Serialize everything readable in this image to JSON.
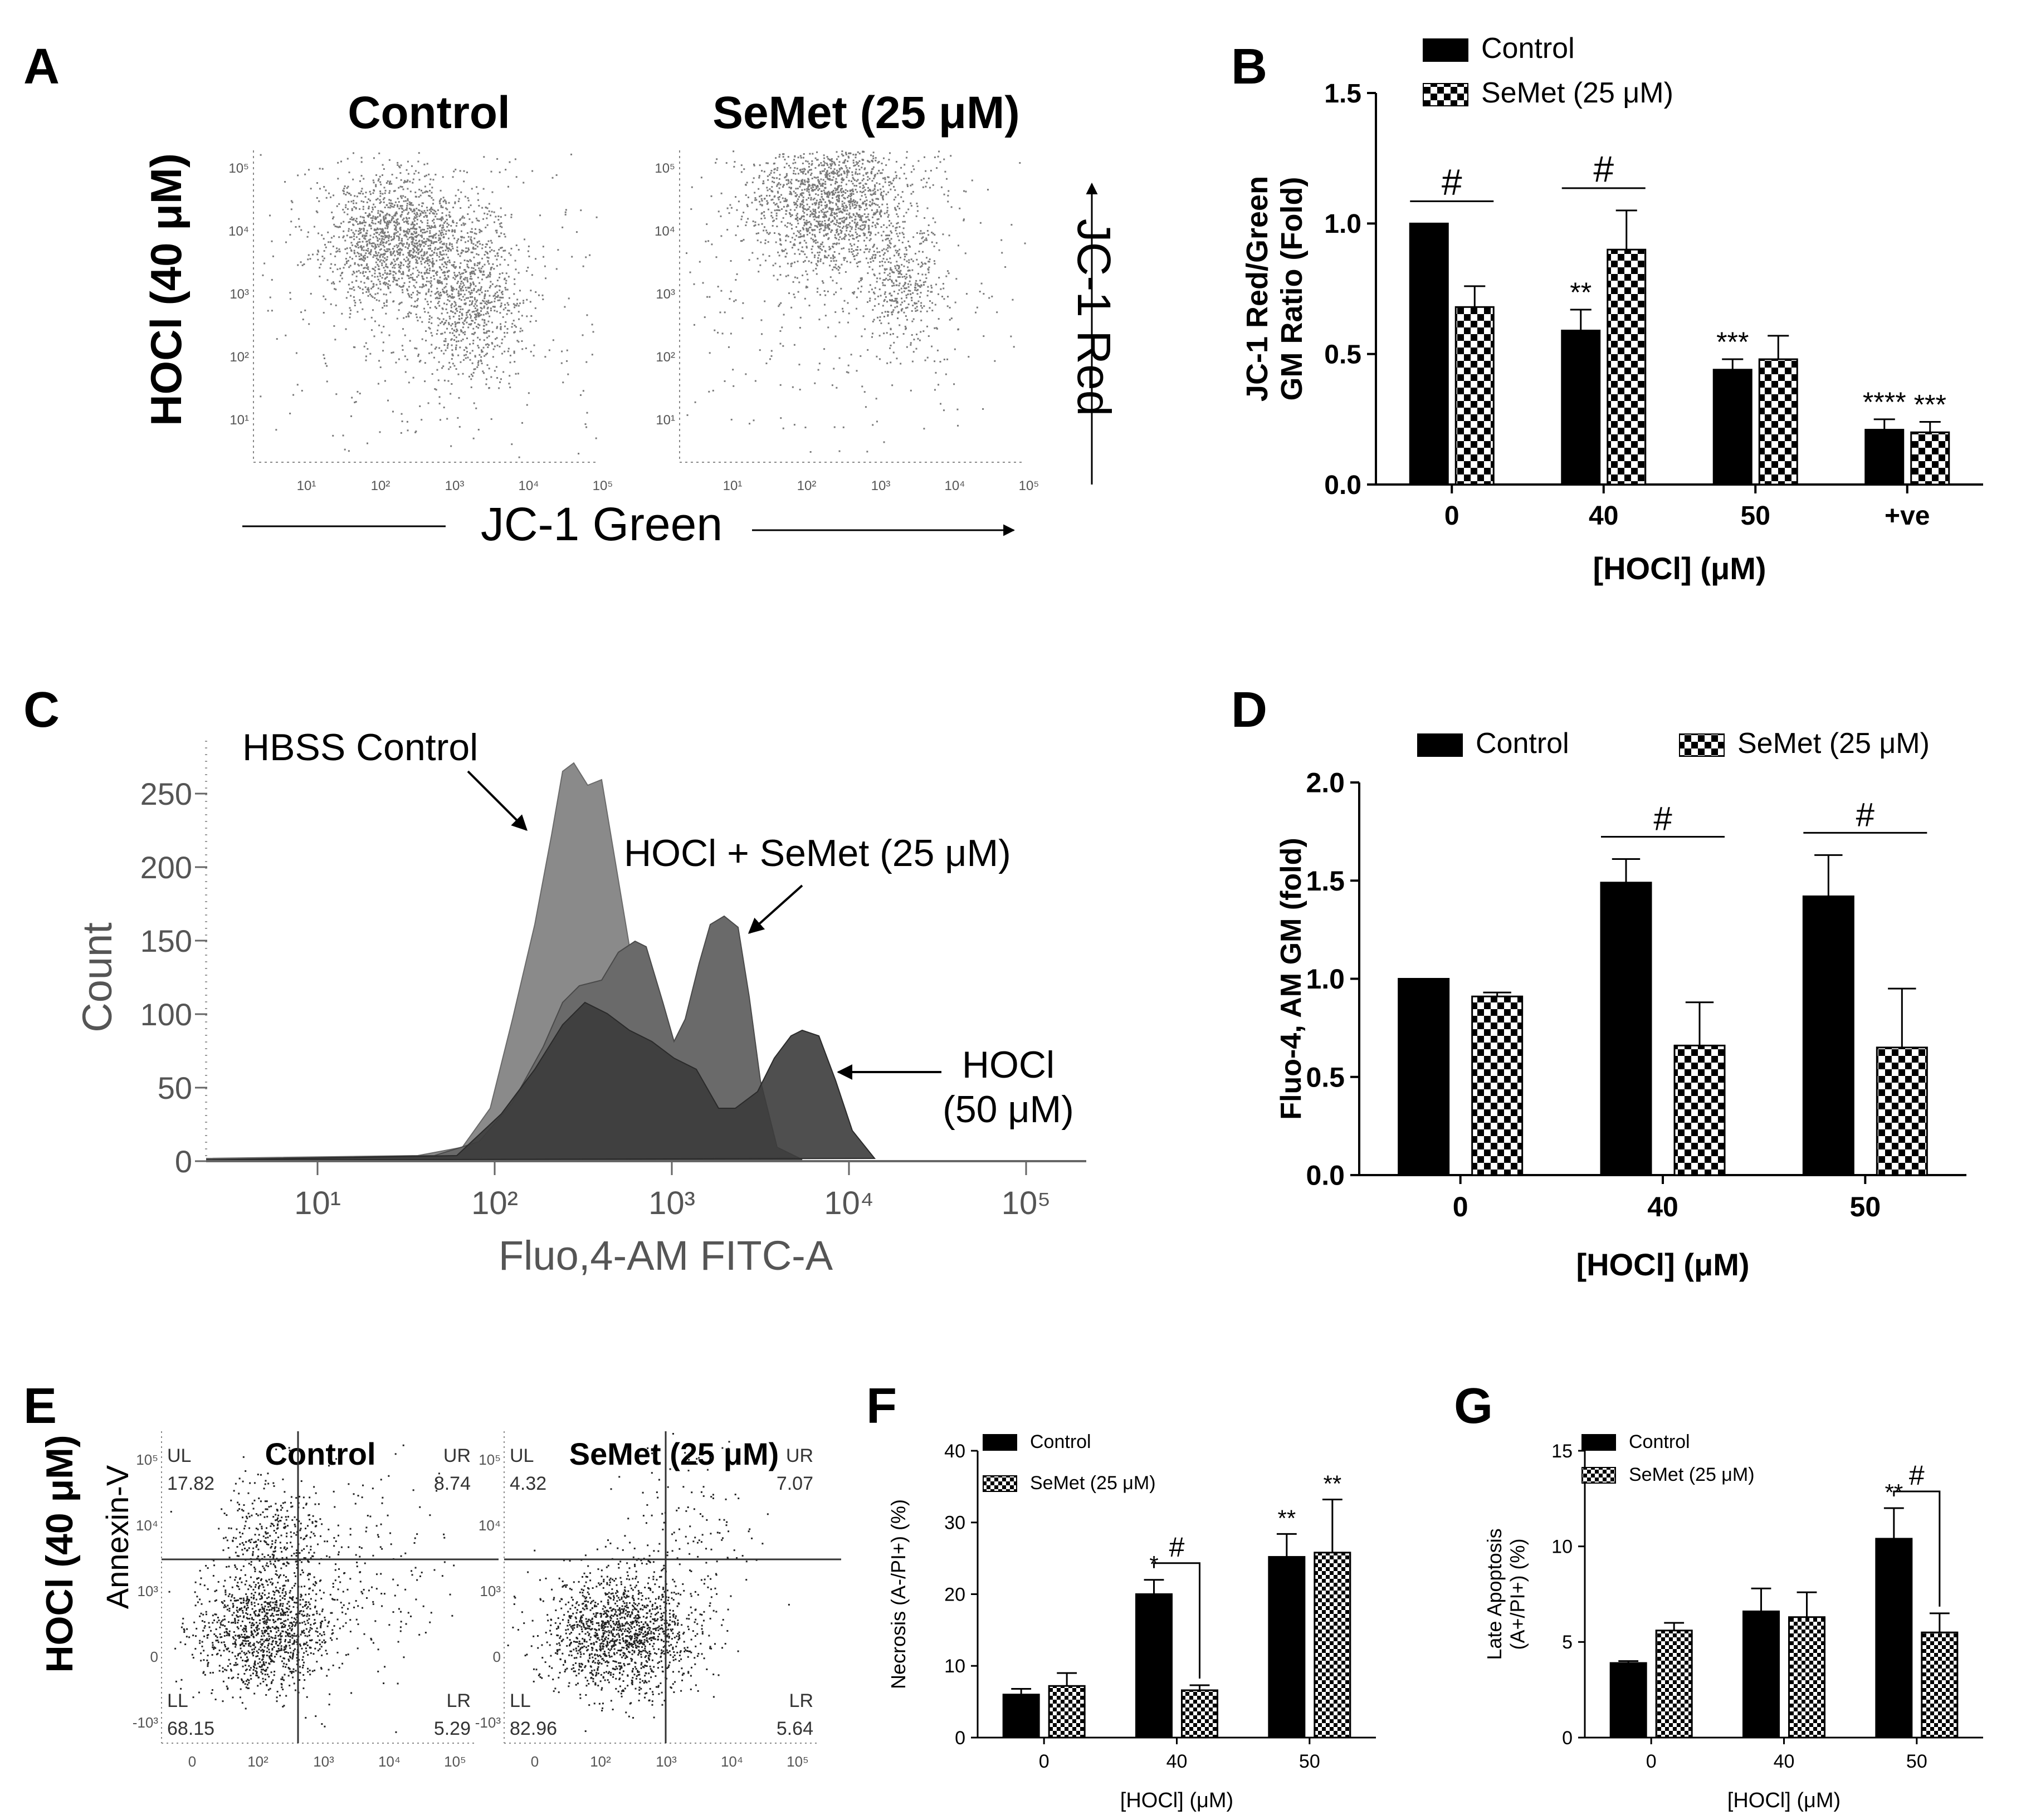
{
  "colors": {
    "ink": "#000000",
    "flow_dots": "#7a7a7a",
    "flow_dots_dark": "#222222",
    "histogram_light": "#8a8a8a",
    "histogram_mid": "#5e5e5e",
    "histogram_dark": "#3c3c3c",
    "axis_gray": "#666666"
  },
  "panel_letters": {
    "A": "A",
    "B": "B",
    "C": "C",
    "D": "D",
    "E": "E",
    "F": "F",
    "G": "G"
  },
  "panel_A": {
    "row_label": "HOCl (40 μM)",
    "plots": [
      {
        "title": "Control"
      },
      {
        "title": "SeMet (25 μM)"
      }
    ],
    "x_ticks": [
      "10¹",
      "10²",
      "10³",
      "10⁴",
      "10⁵"
    ],
    "y_ticks": [
      "10⁵",
      "10⁴",
      "10³",
      "10²",
      "10¹"
    ],
    "x_axis_label": "JC-1 Green",
    "y_axis_label": "JC-1 Red"
  },
  "panel_C": {
    "ylabel": "Count",
    "xlabel": "Fluo,4-AM FITC-A",
    "y_ticks": [
      "250",
      "200",
      "150",
      "100",
      "50",
      "0"
    ],
    "x_ticks": [
      "10¹",
      "10²",
      "10³",
      "10⁴",
      "10⁵"
    ],
    "annotations": {
      "hbss": "HBSS Control",
      "semet": "HOCl + SeMet (25 μM)",
      "hocl_line1": "HOCl",
      "hocl_line2": "(50 μM)"
    }
  },
  "panel_E": {
    "row_label": "HOCl (40 μM)",
    "ylabel": "Annexin-V",
    "plots": [
      {
        "title": "Control",
        "UL": "17.82",
        "UR": "8.74",
        "LL": "68.15",
        "LR": "5.29"
      },
      {
        "title": "SeMet  (25 μM)",
        "UL": "4.32",
        "UR": "7.07",
        "LL": "82.96",
        "LR": "5.64"
      }
    ],
    "quadrant_labels": {
      "UL": "UL",
      "UR": "UR",
      "LL": "LL",
      "LR": "LR"
    },
    "x_ticks": [
      "0",
      "10²",
      "10³",
      "10⁴",
      "10⁵"
    ],
    "y_ticks": [
      "10⁵",
      "10⁴",
      "10³",
      "0",
      "-10³"
    ]
  },
  "chart_data": [
    {
      "panel": "B",
      "type": "bar",
      "categories": [
        "0",
        "40",
        "50",
        "+ve"
      ],
      "series": [
        {
          "name": "Control",
          "values": [
            1.0,
            0.59,
            0.44,
            0.21
          ],
          "errors": [
            0,
            0.08,
            0.04,
            0.04
          ]
        },
        {
          "name": "SeMet (25 μM)",
          "values": [
            0.68,
            0.9,
            0.48,
            0.2
          ],
          "errors": [
            0.08,
            0.15,
            0.09,
            0.04
          ]
        }
      ],
      "xlabel": "[HOCl] (μM)",
      "ylabel_lines": [
        "JC-1 Red/Green",
        "GM Ratio (Fold)"
      ],
      "ylim": [
        0,
        1.5
      ],
      "yticks": [
        "0.0",
        "0.5",
        "1.0",
        "1.5"
      ],
      "significance": [
        {
          "series": 0,
          "category": 1,
          "label": "**"
        },
        {
          "series": 0,
          "category": 2,
          "label": "***"
        },
        {
          "series": 0,
          "category": 3,
          "label": "****"
        },
        {
          "series": 1,
          "category": 3,
          "label": "***"
        }
      ],
      "brackets": [
        {
          "category": 0,
          "label": "#"
        },
        {
          "category": 1,
          "label": "#"
        }
      ],
      "legend": "top"
    },
    {
      "panel": "D",
      "type": "bar",
      "categories": [
        "0",
        "40",
        "50"
      ],
      "series": [
        {
          "name": "Control",
          "values": [
            1.0,
            1.49,
            1.42
          ],
          "errors": [
            0,
            0.12,
            0.21
          ]
        },
        {
          "name": "SeMet (25 μM)",
          "values": [
            0.91,
            0.66,
            0.65
          ],
          "errors": [
            0.02,
            0.22,
            0.3
          ]
        }
      ],
      "xlabel": "[HOCl] (μM)",
      "ylabel": "Fluo-4, AM GM (fold)",
      "ylim": [
        0,
        2.0
      ],
      "yticks": [
        "0.0",
        "0.5",
        "1.0",
        "1.5",
        "2.0"
      ],
      "brackets": [
        {
          "category": 1,
          "label": "#"
        },
        {
          "category": 2,
          "label": "#"
        }
      ],
      "legend": "top"
    },
    {
      "panel": "F",
      "type": "bar",
      "categories": [
        "0",
        "40",
        "50"
      ],
      "series": [
        {
          "name": "Control",
          "values": [
            6.0,
            20.0,
            25.2
          ],
          "errors": [
            0.8,
            2.0,
            3.2
          ]
        },
        {
          "name": "SeMet (25 μM)",
          "values": [
            7.2,
            6.6,
            25.8
          ],
          "errors": [
            1.8,
            0.7,
            7.4
          ]
        }
      ],
      "xlabel": "[HOCl] (μM)",
      "ylabel": "Necrosis (A-/PI+) (%)",
      "ylim": [
        0,
        40
      ],
      "yticks": [
        "0",
        "10",
        "20",
        "30",
        "40"
      ],
      "significance": [
        {
          "series": 0,
          "category": 1,
          "label": "*"
        },
        {
          "series": 0,
          "category": 2,
          "label": "**"
        },
        {
          "series": 1,
          "category": 2,
          "label": "**"
        }
      ],
      "brackets": [
        {
          "category": 1,
          "label": "#"
        }
      ],
      "legend": "top-left"
    },
    {
      "panel": "G",
      "type": "bar",
      "categories": [
        "0",
        "40",
        "50"
      ],
      "series": [
        {
          "name": "Control",
          "values": [
            3.9,
            6.6,
            10.4
          ],
          "errors": [
            0.1,
            1.2,
            1.6
          ]
        },
        {
          "name": "SeMet (25 μM)",
          "values": [
            5.6,
            6.3,
            5.5
          ],
          "errors": [
            0.4,
            1.3,
            1.0
          ]
        }
      ],
      "xlabel": "[HOCl] (μM)",
      "ylabel_lines": [
        "Late Apoptosis",
        "(A+/PI+) (%)"
      ],
      "ylim": [
        0,
        15
      ],
      "yticks": [
        "0",
        "5",
        "10",
        "15"
      ],
      "significance": [
        {
          "series": 0,
          "category": 2,
          "label": "**"
        }
      ],
      "brackets": [
        {
          "category": 2,
          "label": "#"
        }
      ],
      "legend": "top-left"
    }
  ]
}
